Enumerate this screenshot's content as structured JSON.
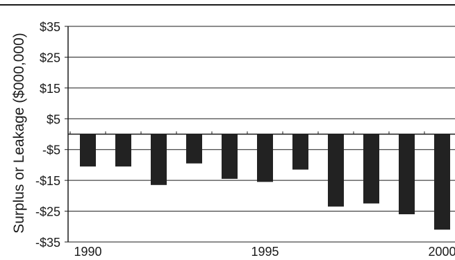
{
  "chart_data": {
    "type": "bar",
    "title": "",
    "xlabel": "",
    "ylabel": "Surplus or Leakage ($000,000)",
    "x": [
      1990,
      1991,
      1992,
      1993,
      1994,
      1995,
      1996,
      1997,
      1998,
      1999,
      2000
    ],
    "x_tick_labels": [
      "1990",
      "1995",
      "2000"
    ],
    "x_tick_values": [
      1990,
      1995,
      2000
    ],
    "values": [
      -10.5,
      -10.5,
      -16.5,
      -9.5,
      -14.5,
      -15.5,
      -11.5,
      -23.5,
      -22.5,
      -26,
      -31
    ],
    "ylim": [
      -35,
      35
    ],
    "y_tick_values": [
      35,
      25,
      15,
      5,
      -5,
      -15,
      -25,
      -35
    ],
    "y_tick_labels": [
      "$35",
      "$25",
      "$15",
      "$5",
      "-$5",
      "-$15",
      "-$25",
      "-$35"
    ],
    "grid": true,
    "legend": "none",
    "colors": {
      "bar": "#222222",
      "grid": "#1a1a1a",
      "axis": "#1a1a1a"
    }
  }
}
